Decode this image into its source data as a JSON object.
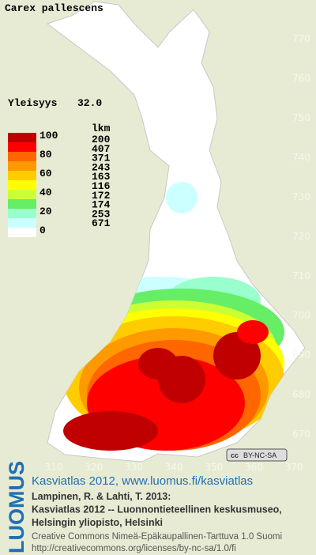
{
  "title": "Carex pallescens",
  "index": {
    "label": "Yleisyys",
    "value": "32.0"
  },
  "legend": {
    "scale": [
      "100",
      "80",
      "60",
      "40",
      "20",
      "0"
    ],
    "count_header": "lkm",
    "counts": [
      "200",
      "407",
      "371",
      "243",
      "163",
      "116",
      "172",
      "174",
      "253",
      "671"
    ],
    "colors": [
      "#c00000",
      "#ff0000",
      "#ff6600",
      "#ff9900",
      "#ffcc00",
      "#ffff00",
      "#ccff33",
      "#66ee66",
      "#99ffcc",
      "#ccffff",
      "#ffffff"
    ]
  },
  "x_axis": [
    "310",
    "320",
    "330",
    "340",
    "350",
    "360",
    "370"
  ],
  "y_axis": [
    "670",
    "680",
    "690",
    "700",
    "710",
    "720",
    "730",
    "740",
    "750",
    "760",
    "770"
  ],
  "badge": "BY-NC-SA",
  "footer": {
    "brand": "LUOMUS",
    "link": "Kasviatlas 2012, www.luomus.fi/kasviatlas",
    "citation": [
      "Lampinen, R. & Lahti, T. 2013:",
      "Kasviatlas 2012 -- Luonnontieteellinen keskusmuseo,",
      "Helsingin yliopisto, Helsinki"
    ],
    "license": [
      "Creative Commons Nimeä-Epäkaupallinen-Tarttuva 1.0 Suomi",
      "http://creativecommons.org/licenses/by-nc-sa/1.0/fi"
    ]
  }
}
